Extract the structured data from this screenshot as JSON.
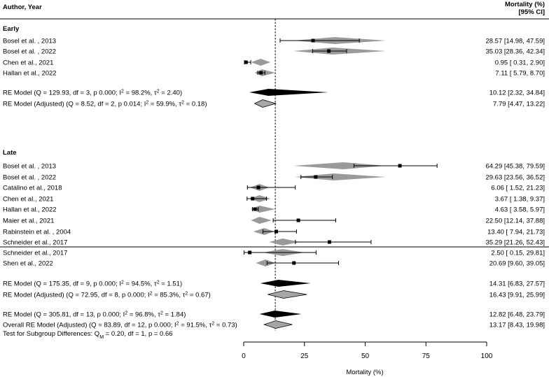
{
  "chart_data": {
    "type": "forest",
    "header": {
      "left": "Author, Year",
      "right_line1": "Mortality (%)",
      "right_line2": "[95% CI]"
    },
    "xlabel": "Mortality (%)",
    "xlim": [
      0,
      100
    ],
    "xticks": [
      "0",
      "25",
      "50",
      "75",
      "100"
    ],
    "reference_line": 13,
    "groups": [
      {
        "name": "Early",
        "studies": [
          {
            "label": "Bosel et al. , 2013",
            "est": 28.57,
            "lo": 14.98,
            "hi": 47.59,
            "text": "28.57 [14.98, 47.59]",
            "adj": {
              "est": 37.5,
              "lo": 20.5,
              "hi": 58.5
            }
          },
          {
            "label": "Bosel et al. , 2022",
            "est": 35.03,
            "lo": 28.36,
            "hi": 42.34,
            "text": "35.03 [28.36, 42.34]",
            "adj": {
              "est": 36.5,
              "lo": 20.5,
              "hi": 58.5
            }
          },
          {
            "label": "Chen et al., 2021",
            "est": 0.95,
            "lo": 0.31,
            "hi": 2.9,
            "text": "0.95 [ 0.31, 2.90]",
            "adj": {
              "est": 7.0,
              "lo": 3.0,
              "hi": 11.0
            }
          },
          {
            "label": "Hallan et al., 2022",
            "est": 7.11,
            "lo": 5.79,
            "hi": 8.7,
            "text": "7.11 [ 5.79, 8.70]",
            "adj": {
              "est": 7.5,
              "lo": 4.5,
              "hi": 13.0
            }
          }
        ],
        "summaries": [
          {
            "label_pre": "RE Model (Q = 129.93, df = 3, p 0.000; I",
            "i2": "98.2%",
            "tau2": "2.40",
            "est": 10.12,
            "lo": 2.32,
            "hi": 34.84,
            "text": "10.12 [2.32, 34.84]",
            "kind": "black"
          },
          {
            "label_pre": "RE Model (Adjusted) (Q = 8.52, df = 2, p 0.014; I",
            "i2": "59.9%",
            "tau2": "0.18",
            "est": 7.79,
            "lo": 4.47,
            "hi": 13.22,
            "text": "7.79 [4.47, 13.22]",
            "kind": "gray"
          }
        ]
      },
      {
        "name": "Late",
        "studies": [
          {
            "label": "Bosel et al. , 2013",
            "est": 64.29,
            "lo": 45.38,
            "hi": 79.59,
            "text": "64.29 [45.38, 79.59]",
            "adj": {
              "est": 41.0,
              "lo": 20.5,
              "hi": 58.5
            }
          },
          {
            "label": "Bosel et al. , 2022",
            "est": 29.63,
            "lo": 23.56,
            "hi": 36.52,
            "text": "29.63 [23.56, 36.52]",
            "adj": {
              "est": 37.0,
              "lo": 21.0,
              "hi": 58.5
            }
          },
          {
            "label": "Catalino et al., 2018",
            "est": 6.06,
            "lo": 1.52,
            "hi": 21.23,
            "text": "6.06 [ 1.52, 21.23]",
            "adj": {
              "est": 6.5,
              "lo": 2.5,
              "hi": 10.5
            }
          },
          {
            "label": "Chen et al., 2021",
            "est": 3.67,
            "lo": 1.38,
            "hi": 9.37,
            "text": "3.67 [ 1.38, 9.37]",
            "adj": {
              "est": 6.5,
              "lo": 2.5,
              "hi": 11.0
            }
          },
          {
            "label": "Hallan et al., 2022",
            "est": 4.63,
            "lo": 3.58,
            "hi": 5.97,
            "text": "4.63 [ 3.58, 5.97]",
            "adj": {
              "est": 6.5,
              "lo": 3.0,
              "hi": 13.0
            }
          },
          {
            "label": "Maier et al., 2021",
            "est": 22.5,
            "lo": 12.14,
            "hi": 37.88,
            "text": "22.50 [12.14, 37.88]",
            "adj": {
              "est": 6.5,
              "lo": 3.0,
              "hi": 11.5
            }
          },
          {
            "label": "Rabinstein et al. , 2004",
            "est": 13.4,
            "lo": 7.94,
            "hi": 21.73,
            "text": "13.40 [ 7.94, 21.73]",
            "adj": {
              "est": 8.5,
              "lo": 4.0,
              "hi": 12.5
            }
          },
          {
            "label": "Schneider et al., 2017",
            "est": 35.29,
            "lo": 21.26,
            "hi": 52.43,
            "text": "35.29 [21.26, 52.43]",
            "adj": {
              "est": 16.0,
              "lo": 10.5,
              "hi": 23.0
            }
          },
          {
            "label": "Schneider et al., 2017",
            "est": 2.5,
            "lo": 0.15,
            "hi": 29.81,
            "text": "2.50 [ 0.15, 29.81]",
            "adj": {
              "est": 16.0,
              "lo": 8.0,
              "hi": 25.0
            }
          },
          {
            "label": "Shen et al., 2022",
            "est": 20.69,
            "lo": 9.6,
            "hi": 39.05,
            "text": "20.69 [9.60, 39.05]",
            "adj": {
              "est": 9.0,
              "lo": 5.0,
              "hi": 13.0
            }
          }
        ],
        "summaries": [
          {
            "label_pre": "RE Model (Q = 175.35, df = 9, p 0.000; I",
            "i2": "94.5%",
            "tau2": "1.51",
            "est": 14.31,
            "lo": 6.83,
            "hi": 27.57,
            "text": "14.31 [6.83, 27.57]",
            "kind": "black"
          },
          {
            "label_pre": "RE Model (Adjusted) (Q = 72.95, df = 8, p 0.000; I",
            "i2": "85.3%",
            "tau2": "0.67",
            "est": 16.43,
            "lo": 9.91,
            "hi": 25.99,
            "text": "16.43 [9.91, 25.99]",
            "kind": "gray"
          }
        ]
      }
    ],
    "overall": [
      {
        "label_pre": "RE Model (Q = 305.81, df = 13, p 0.000; I",
        "i2": "96.8%",
        "tau2": "1.84",
        "est": 12.82,
        "lo": 6.48,
        "hi": 23.79,
        "text": "12.82 [6.48, 23.79]",
        "kind": "black"
      },
      {
        "label_pre": "Overall RE Model (Adjusted) (Q = 83.89, df = 12, p 0.000; I",
        "i2": "91.5%",
        "tau2": "0.73",
        "est": 13.17,
        "lo": 8.43,
        "hi": 19.98,
        "text": "13.17 [8.43, 19.98]",
        "kind": "gray"
      }
    ],
    "subgroup_test": {
      "pre": "Test for Subgroup Differences: Q",
      "sub": "M",
      "post": " = 0.20, df = 1, p = 0.66"
    },
    "colors": {
      "diamond_black": "#000000",
      "diamond_gray": "#9a9a9a",
      "adjusted_summary_fill": "#a6a6a6"
    }
  }
}
